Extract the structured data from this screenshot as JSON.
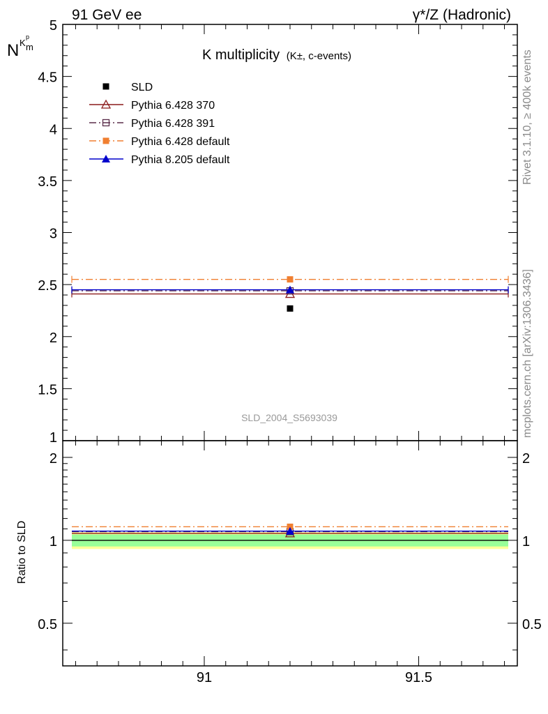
{
  "header": {
    "left": "91 GeV ee",
    "right": "γ*/Z (Hadronic)"
  },
  "side_labels": {
    "rivet": "Rivet 3.1.10, ≥ 400k events",
    "mcplots": "mcplots.cern.ch [arXiv:1306.3436]"
  },
  "watermark": "SLD_2004_S5693039",
  "chart_data": [
    {
      "type": "scatter",
      "title": "K multiplicity",
      "title_detail": "(K±, c-events)",
      "ylabel": "N_{K^p m}",
      "xlabel": "",
      "xlim": [
        90.67,
        91.73
      ],
      "ylim": [
        1,
        5
      ],
      "x_ticks": [
        91,
        91.5
      ],
      "y_ticks": [
        1,
        1.5,
        2,
        2.5,
        3,
        3.5,
        4,
        4.5,
        5
      ],
      "y_tick_labels": [
        "1",
        "1.5",
        "2",
        "2.5",
        "3",
        "3.5",
        "4",
        "4.5",
        "5"
      ],
      "legend": [
        {
          "name": "SLD",
          "color": "#000000",
          "style": "data"
        },
        {
          "name": "Pythia 6.428 370",
          "color": "#8b1a1a",
          "style": "solid"
        },
        {
          "name": "Pythia 6.428 391",
          "color": "#5a2d4a",
          "style": "dashdot"
        },
        {
          "name": "Pythia 6.428 default",
          "color": "#f07f30",
          "style": "dashdot"
        },
        {
          "name": "Pythia 8.205 default",
          "color": "#0000cc",
          "style": "solid"
        }
      ],
      "series": [
        {
          "name": "SLD",
          "x": [
            91.2
          ],
          "y": [
            2.27
          ],
          "color": "#000000",
          "marker": "square"
        },
        {
          "name": "Pythia 6.428 370",
          "x_range": [
            90.67,
            91.73
          ],
          "x": [
            91.2
          ],
          "y": [
            2.41
          ],
          "color": "#8b1a1a",
          "marker": "open-triangle"
        },
        {
          "name": "Pythia 6.428 391",
          "x_range": [
            90.67,
            91.73
          ],
          "x": [
            91.2
          ],
          "y": [
            2.44
          ],
          "color": "#5a2d4a",
          "marker": "open-square"
        },
        {
          "name": "Pythia 6.428 default",
          "x_range": [
            90.67,
            91.73
          ],
          "x": [
            91.2
          ],
          "y": [
            2.55
          ],
          "color": "#f07f30",
          "marker": "square"
        },
        {
          "name": "Pythia 8.205 default",
          "x_range": [
            90.67,
            91.73
          ],
          "x": [
            91.2
          ],
          "y": [
            2.45
          ],
          "color": "#0000cc",
          "marker": "triangle"
        }
      ]
    },
    {
      "type": "scatter",
      "ylabel": "Ratio to SLD",
      "xlabel": "",
      "xlim": [
        90.67,
        91.73
      ],
      "ylim": [
        0.35,
        2.3
      ],
      "x_ticks": [
        91,
        91.5
      ],
      "x_tick_labels": [
        "91",
        "91.5"
      ],
      "y_ticks": [
        0.5,
        1,
        2
      ],
      "y_tick_labels": [
        "0.5",
        "1",
        "2"
      ],
      "bands": [
        {
          "low": 0.93,
          "high": 1.07,
          "color": "#ffff99"
        },
        {
          "low": 0.95,
          "high": 1.05,
          "color": "#99ff99"
        }
      ],
      "series": [
        {
          "name": "SLD",
          "x_range": [
            90.67,
            91.73
          ],
          "y": [
            1.0
          ],
          "color": "#000000"
        },
        {
          "name": "Pythia 6.428 370",
          "x_range": [
            90.67,
            91.73
          ],
          "x": [
            91.2
          ],
          "y": [
            1.06
          ],
          "color": "#8b1a1a",
          "marker": "open-triangle"
        },
        {
          "name": "Pythia 6.428 391",
          "x_range": [
            90.67,
            91.73
          ],
          "x": [
            91.2
          ],
          "y": [
            1.075
          ],
          "color": "#5a2d4a",
          "marker": "open-square"
        },
        {
          "name": "Pythia 6.428 default",
          "x_range": [
            90.67,
            91.73
          ],
          "x": [
            91.2
          ],
          "y": [
            1.12
          ],
          "color": "#f07f30",
          "marker": "square"
        },
        {
          "name": "Pythia 8.205 default",
          "x_range": [
            90.67,
            91.73
          ],
          "x": [
            91.2
          ],
          "y": [
            1.08
          ],
          "color": "#0000cc",
          "marker": "triangle"
        }
      ]
    }
  ]
}
